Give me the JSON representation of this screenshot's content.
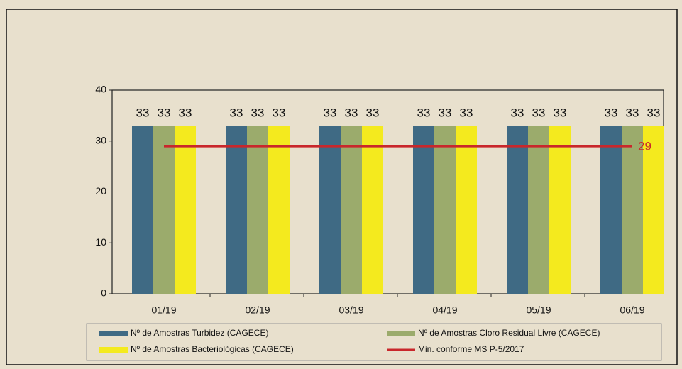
{
  "chart_data": {
    "type": "bar",
    "categories": [
      "01/19",
      "02/19",
      "03/19",
      "04/19",
      "05/19",
      "06/19"
    ],
    "series": [
      {
        "name": "Nº de Amostras Turbidez (CAGECE)",
        "color": "#3f6a84",
        "values": [
          33,
          33,
          33,
          33,
          33,
          33
        ]
      },
      {
        "name": "Nº de Amostras Cloro Residual Livre (CAGECE)",
        "color": "#9bab6c",
        "values": [
          33,
          33,
          33,
          33,
          33,
          33
        ]
      },
      {
        "name": "Nº de Amostras Bacteriológicas (CAGECE)",
        "color": "#f4ea1e",
        "values": [
          33,
          33,
          33,
          33,
          33,
          33
        ]
      },
      {
        "name": "Min. conforme MS  P-5/2017",
        "color": "#c9272b",
        "type": "line",
        "values": [
          29,
          29,
          29,
          29,
          29,
          29
        ]
      }
    ],
    "ylim": [
      0,
      40
    ],
    "yticks": [
      0,
      10,
      20,
      30,
      40
    ]
  }
}
